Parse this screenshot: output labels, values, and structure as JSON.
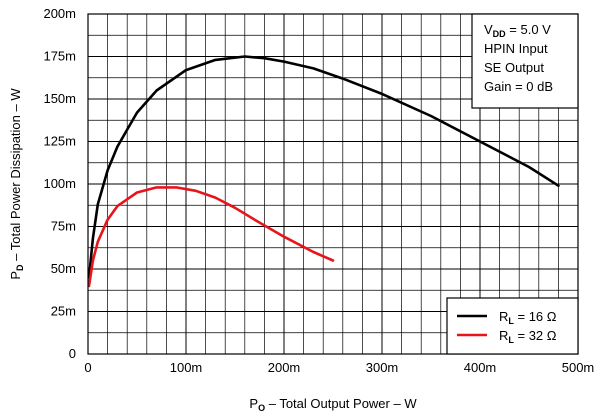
{
  "chart_data": {
    "type": "line",
    "xlabel": {
      "main": "P",
      "sub": "O",
      "rest": " – Total Output Power – W"
    },
    "ylabel": {
      "main": "P",
      "sub": "D",
      "rest": " – Total Power Dissipation – W"
    },
    "xlim": [
      0,
      0.5
    ],
    "ylim": [
      0,
      0.2
    ],
    "x_ticks": [
      0,
      0.1,
      0.2,
      0.3,
      0.4,
      0.5
    ],
    "x_tick_labels": [
      "0",
      "100m",
      "200m",
      "300m",
      "400m",
      "500m"
    ],
    "y_ticks": [
      0,
      0.025,
      0.05,
      0.075,
      0.1,
      0.125,
      0.15,
      0.175,
      0.2
    ],
    "y_tick_labels": [
      "0",
      "25m",
      "50m",
      "75m",
      "100m",
      "125m",
      "150m",
      "175m",
      "200m"
    ],
    "x_minor_step": 0.02,
    "y_minor_step": 0.0125,
    "grid": true,
    "annotation": {
      "lines": [
        {
          "main": "V",
          "sub": "DD",
          "rest": " = 5.0 V"
        },
        {
          "main": "HPIN Input",
          "sub": "",
          "rest": ""
        },
        {
          "main": "SE Output",
          "sub": "",
          "rest": ""
        },
        {
          "main": "Gain = 0 dB",
          "sub": "",
          "rest": ""
        }
      ]
    },
    "legend_position": "bottom-right",
    "series": [
      {
        "name": {
          "main": "R",
          "sub": "L",
          "rest": " = 16 Ω"
        },
        "color": "#000000",
        "x": [
          0.001,
          0.005,
          0.01,
          0.02,
          0.03,
          0.05,
          0.07,
          0.1,
          0.13,
          0.16,
          0.18,
          0.2,
          0.23,
          0.26,
          0.3,
          0.35,
          0.4,
          0.45,
          0.48
        ],
        "y": [
          0.045,
          0.068,
          0.088,
          0.108,
          0.122,
          0.142,
          0.155,
          0.167,
          0.173,
          0.175,
          0.174,
          0.172,
          0.168,
          0.162,
          0.153,
          0.14,
          0.125,
          0.11,
          0.099
        ]
      },
      {
        "name": {
          "main": "R",
          "sub": "L",
          "rest": " = 32 Ω"
        },
        "color": "#e8141c",
        "x": [
          0.001,
          0.005,
          0.01,
          0.02,
          0.03,
          0.05,
          0.07,
          0.09,
          0.11,
          0.13,
          0.15,
          0.17,
          0.2,
          0.23,
          0.25
        ],
        "y": [
          0.04,
          0.055,
          0.066,
          0.079,
          0.087,
          0.095,
          0.098,
          0.098,
          0.096,
          0.092,
          0.086,
          0.079,
          0.069,
          0.06,
          0.055
        ]
      }
    ]
  }
}
